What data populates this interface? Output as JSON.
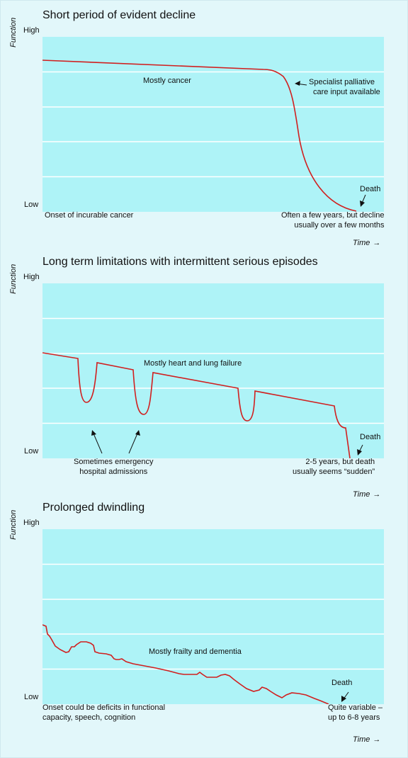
{
  "colors": {
    "background": "#e2f7fa",
    "plot_fill": "#aef3f7",
    "gridline": "#ffffff",
    "curve": "#d11f1f",
    "text": "#111111"
  },
  "common": {
    "y_axis_label": "Function",
    "y_high": "High",
    "y_low": "Low",
    "x_axis_label": "Time",
    "x_arrow": "→"
  },
  "panels": [
    {
      "title": "Short period of evident decline",
      "annotations": {
        "curve_label": "Mostly cancer",
        "specialist": [
          "Specialist palliative",
          "care input available"
        ],
        "death": "Death",
        "onset": "Onset of incurable cancer",
        "duration": [
          "Often a few years, but decline",
          "usually over a few months"
        ]
      }
    },
    {
      "title": "Long term limitations with intermittent serious episodes",
      "annotations": {
        "curve_label": "Mostly heart and lung failure",
        "emergency": [
          "Sometimes emergency",
          "hospital admissions"
        ],
        "death": "Death",
        "duration": [
          "2-5 years, but death",
          "usually seems “sudden”"
        ]
      }
    },
    {
      "title": "Prolonged dwindling",
      "annotations": {
        "curve_label": "Mostly frailty and dementia",
        "death": "Death",
        "onset": [
          "Onset could be deficits in functional",
          "capacity, speech, cognition"
        ],
        "duration": [
          "Quite variable –",
          "up to 6-8 years"
        ]
      }
    }
  ]
}
